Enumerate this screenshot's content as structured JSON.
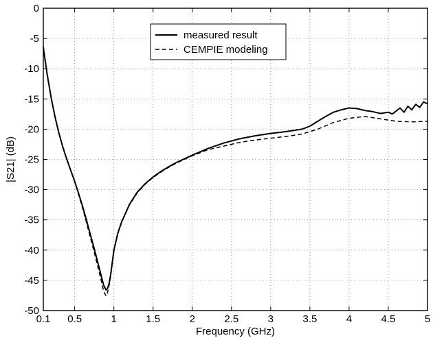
{
  "chart_data": {
    "type": "line",
    "title": "",
    "xlabel": "Frequency (GHz)",
    "ylabel": "|S21| (dB)",
    "xlim": [
      0.1,
      5
    ],
    "ylim": [
      -50,
      0
    ],
    "xticks": [
      0.1,
      0.5,
      1,
      1.5,
      2,
      2.5,
      3,
      3.5,
      4,
      4.5,
      5
    ],
    "xtick_labels": [
      "0.1",
      "0.5",
      "1",
      "1.5",
      "2",
      "2.5",
      "3",
      "3.5",
      "4",
      "4.5",
      "5"
    ],
    "yticks": [
      0,
      -5,
      -10,
      -15,
      -20,
      -25,
      -30,
      -35,
      -40,
      -45,
      -50
    ],
    "ytick_labels": [
      "0",
      "-5",
      "-10",
      "-15",
      "-20",
      "-25",
      "-30",
      "-35",
      "-40",
      "-45",
      "-50"
    ],
    "grid": true,
    "legend_position": "top-center",
    "series": [
      {
        "name": "measured result",
        "style": "solid",
        "color": "#000000",
        "x": [
          0.1,
          0.15,
          0.2,
          0.25,
          0.3,
          0.35,
          0.4,
          0.45,
          0.5,
          0.55,
          0.6,
          0.65,
          0.7,
          0.75,
          0.8,
          0.84,
          0.87,
          0.9,
          0.92,
          0.94,
          0.96,
          0.98,
          1.0,
          1.05,
          1.1,
          1.2,
          1.3,
          1.4,
          1.5,
          1.6,
          1.7,
          1.8,
          1.9,
          2.0,
          2.2,
          2.4,
          2.6,
          2.8,
          3.0,
          3.2,
          3.4,
          3.5,
          3.6,
          3.7,
          3.8,
          3.9,
          4.0,
          4.1,
          4.2,
          4.3,
          4.4,
          4.5,
          4.55,
          4.6,
          4.65,
          4.7,
          4.75,
          4.8,
          4.85,
          4.9,
          4.95,
          5.0
        ],
        "y": [
          -6.5,
          -11.0,
          -14.8,
          -18.0,
          -20.7,
          -23.0,
          -25.0,
          -26.8,
          -28.6,
          -30.6,
          -32.7,
          -35.0,
          -37.4,
          -39.8,
          -42.3,
          -44.3,
          -45.8,
          -46.6,
          -46.3,
          -45.5,
          -44.0,
          -42.0,
          -40.0,
          -37.2,
          -35.3,
          -32.4,
          -30.4,
          -29.0,
          -27.9,
          -27.0,
          -26.2,
          -25.5,
          -24.9,
          -24.3,
          -23.2,
          -22.3,
          -21.6,
          -21.1,
          -20.7,
          -20.4,
          -20.0,
          -19.5,
          -18.7,
          -17.9,
          -17.2,
          -16.8,
          -16.5,
          -16.6,
          -16.9,
          -17.1,
          -17.4,
          -17.2,
          -17.5,
          -17.0,
          -16.5,
          -17.2,
          -16.2,
          -16.8,
          -15.9,
          -16.4,
          -15.5,
          -15.8
        ]
      },
      {
        "name": "CEMPIE modeling",
        "style": "dashed",
        "color": "#000000",
        "x": [
          0.1,
          0.15,
          0.2,
          0.25,
          0.3,
          0.35,
          0.4,
          0.45,
          0.5,
          0.55,
          0.6,
          0.65,
          0.7,
          0.75,
          0.8,
          0.84,
          0.87,
          0.9,
          0.92,
          0.94,
          0.96,
          0.98,
          1.0,
          1.05,
          1.1,
          1.2,
          1.3,
          1.4,
          1.5,
          1.6,
          1.7,
          1.8,
          1.9,
          2.0,
          2.2,
          2.4,
          2.6,
          2.8,
          3.0,
          3.2,
          3.4,
          3.6,
          3.8,
          4.0,
          4.2,
          4.4,
          4.6,
          4.8,
          5.0
        ],
        "y": [
          -6.3,
          -10.8,
          -14.7,
          -17.9,
          -20.6,
          -22.9,
          -24.9,
          -26.8,
          -28.7,
          -30.8,
          -33.0,
          -35.4,
          -37.9,
          -40.4,
          -43.0,
          -45.1,
          -46.8,
          -47.6,
          -47.0,
          -45.8,
          -44.2,
          -42.2,
          -40.2,
          -37.3,
          -35.4,
          -32.5,
          -30.5,
          -29.1,
          -28.0,
          -27.1,
          -26.3,
          -25.6,
          -25.0,
          -24.4,
          -23.4,
          -22.8,
          -22.2,
          -21.8,
          -21.5,
          -21.2,
          -20.8,
          -20.0,
          -18.9,
          -18.2,
          -17.9,
          -18.3,
          -18.7,
          -18.8,
          -18.7
        ]
      }
    ]
  }
}
